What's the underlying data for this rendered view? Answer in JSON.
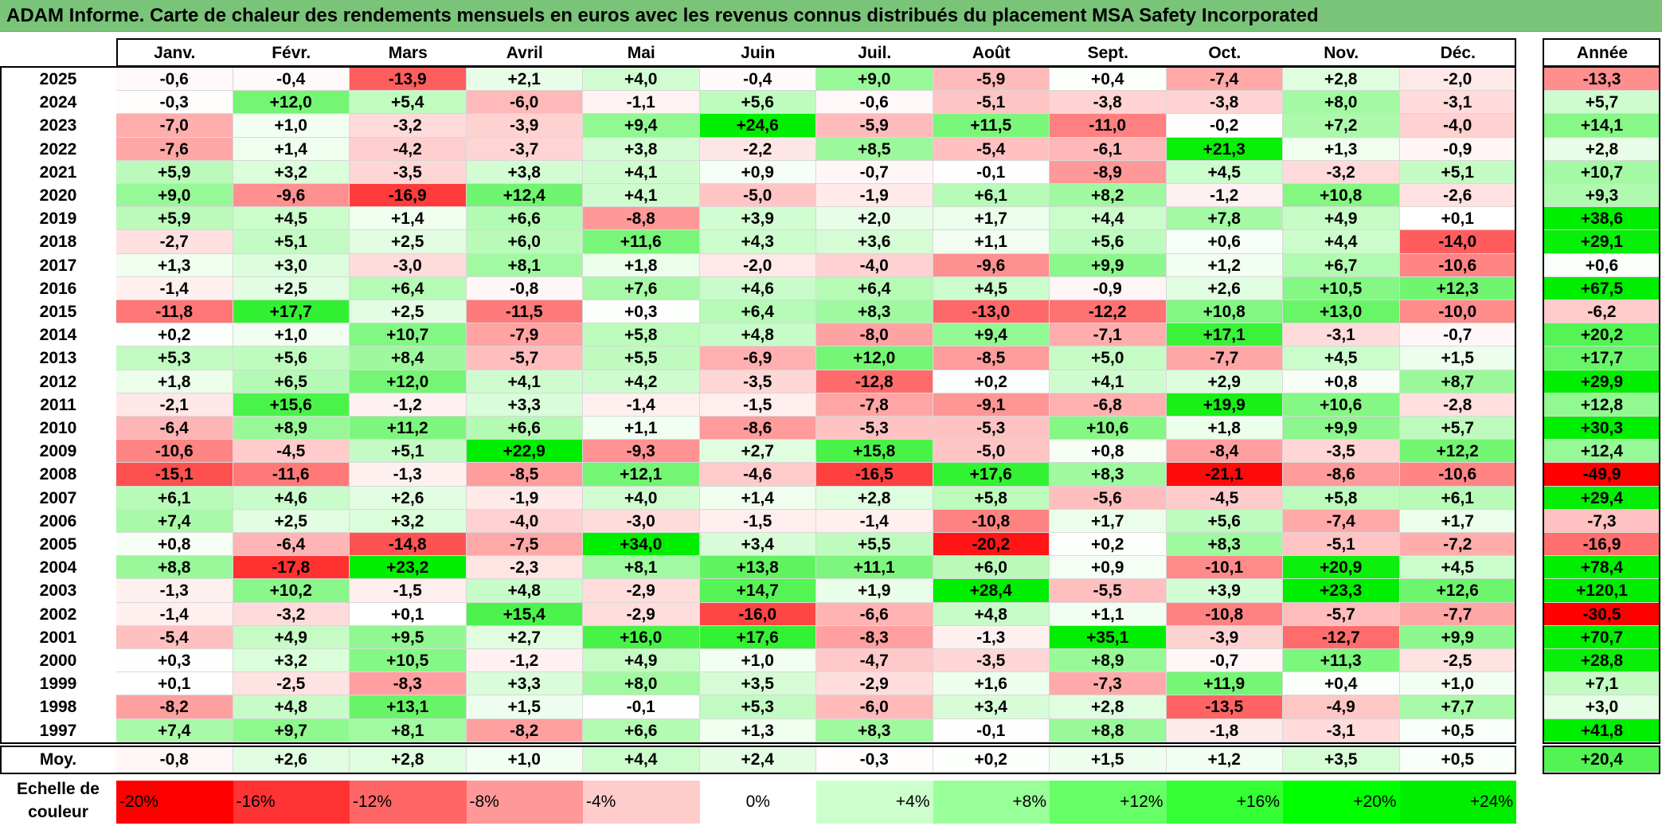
{
  "title": "ADAM Informe. Carte de chaleur des rendements mensuels en euros avec les revenus connus distribués du placement MSA Safety Incorporated",
  "chart_data": {
    "type": "heatmap",
    "title": "ADAM Informe. Carte de chaleur des rendements mensuels en euros avec les revenus connus distribués du placement MSA Safety Incorporated",
    "columns": [
      "Janv.",
      "Févr.",
      "Mars",
      "Avril",
      "Mai",
      "Juin",
      "Juil.",
      "Août",
      "Sept.",
      "Oct.",
      "Nov.",
      "Déc."
    ],
    "year_column_label": "Année",
    "avg_row_label": "Moy.",
    "rows": [
      {
        "year": "2025",
        "values": [
          "-0,6",
          "-0,4",
          "-13,9",
          "+2,1",
          "+4,0",
          "-0,4",
          "+9,0",
          "-5,9",
          "+0,4",
          "-7,4",
          "+2,8",
          "-2,0"
        ],
        "annual": "-13,3"
      },
      {
        "year": "2024",
        "values": [
          "-0,3",
          "+12,0",
          "+5,4",
          "-6,0",
          "-1,1",
          "+5,6",
          "-0,6",
          "-5,1",
          "-3,8",
          "-3,8",
          "+8,0",
          "-3,1"
        ],
        "annual": "+5,7"
      },
      {
        "year": "2023",
        "values": [
          "-7,0",
          "+1,0",
          "-3,2",
          "-3,9",
          "+9,4",
          "+24,6",
          "-5,9",
          "+11,5",
          "-11,0",
          "-0,2",
          "+7,2",
          "-4,0"
        ],
        "annual": "+14,1"
      },
      {
        "year": "2022",
        "values": [
          "-7,6",
          "+1,4",
          "-4,2",
          "-3,7",
          "+3,8",
          "-2,2",
          "+8,5",
          "-5,4",
          "-6,1",
          "+21,3",
          "+1,3",
          "-0,9"
        ],
        "annual": "+2,8"
      },
      {
        "year": "2021",
        "values": [
          "+5,9",
          "+3,2",
          "-3,5",
          "+3,8",
          "+4,1",
          "+0,9",
          "-0,7",
          "-0,1",
          "-8,9",
          "+4,5",
          "-3,2",
          "+5,1"
        ],
        "annual": "+10,7"
      },
      {
        "year": "2020",
        "values": [
          "+9,0",
          "-9,6",
          "-16,9",
          "+12,4",
          "+4,1",
          "-5,0",
          "-1,9",
          "+6,1",
          "+8,2",
          "-1,2",
          "+10,8",
          "-2,6"
        ],
        "annual": "+9,3"
      },
      {
        "year": "2019",
        "values": [
          "+5,9",
          "+4,5",
          "+1,4",
          "+6,6",
          "-8,8",
          "+3,9",
          "+2,0",
          "+1,7",
          "+4,4",
          "+7,8",
          "+4,9",
          "+0,1"
        ],
        "annual": "+38,6"
      },
      {
        "year": "2018",
        "values": [
          "-2,7",
          "+5,1",
          "+2,5",
          "+6,0",
          "+11,6",
          "+4,3",
          "+3,6",
          "+1,1",
          "+5,6",
          "+0,6",
          "+4,4",
          "-14,0"
        ],
        "annual": "+29,1"
      },
      {
        "year": "2017",
        "values": [
          "+1,3",
          "+3,0",
          "-3,0",
          "+8,1",
          "+1,8",
          "-2,0",
          "-4,0",
          "-9,6",
          "+9,9",
          "+1,2",
          "+6,7",
          "-10,6"
        ],
        "annual": "+0,6"
      },
      {
        "year": "2016",
        "values": [
          "-1,4",
          "+2,5",
          "+6,4",
          "-0,8",
          "+7,6",
          "+4,6",
          "+6,4",
          "+4,5",
          "-0,9",
          "+2,6",
          "+10,5",
          "+12,3"
        ],
        "annual": "+67,5"
      },
      {
        "year": "2015",
        "values": [
          "-11,8",
          "+17,7",
          "+2,5",
          "-11,5",
          "+0,3",
          "+6,4",
          "+8,3",
          "-13,0",
          "-12,2",
          "+10,8",
          "+13,0",
          "-10,0"
        ],
        "annual": "-6,2"
      },
      {
        "year": "2014",
        "values": [
          "+0,2",
          "+1,0",
          "+10,7",
          "-7,9",
          "+5,8",
          "+4,8",
          "-8,0",
          "+9,4",
          "-7,1",
          "+17,1",
          "-3,1",
          "-0,7"
        ],
        "annual": "+20,2"
      },
      {
        "year": "2013",
        "values": [
          "+5,3",
          "+5,6",
          "+8,4",
          "-5,7",
          "+5,5",
          "-6,9",
          "+12,0",
          "-8,5",
          "+5,0",
          "-7,7",
          "+4,5",
          "+1,5"
        ],
        "annual": "+17,7"
      },
      {
        "year": "2012",
        "values": [
          "+1,8",
          "+6,5",
          "+12,0",
          "+4,1",
          "+4,2",
          "-3,5",
          "-12,8",
          "+0,2",
          "+4,1",
          "+2,9",
          "+0,8",
          "+8,7"
        ],
        "annual": "+29,9"
      },
      {
        "year": "2011",
        "values": [
          "-2,1",
          "+15,6",
          "-1,2",
          "+3,3",
          "-1,4",
          "-1,5",
          "-7,8",
          "-9,1",
          "-6,8",
          "+19,9",
          "+10,6",
          "-2,8"
        ],
        "annual": "+12,8"
      },
      {
        "year": "2010",
        "values": [
          "-6,4",
          "+8,9",
          "+11,2",
          "+6,6",
          "+1,1",
          "-8,6",
          "-5,3",
          "-5,3",
          "+10,6",
          "+1,8",
          "+9,9",
          "+5,7"
        ],
        "annual": "+30,3"
      },
      {
        "year": "2009",
        "values": [
          "-10,6",
          "-4,5",
          "+5,1",
          "+22,9",
          "-9,3",
          "+2,7",
          "+15,8",
          "-5,0",
          "+0,8",
          "-8,4",
          "-3,5",
          "+12,2"
        ],
        "annual": "+12,4"
      },
      {
        "year": "2008",
        "values": [
          "-15,1",
          "-11,6",
          "-1,3",
          "-8,5",
          "+12,1",
          "-4,6",
          "-16,5",
          "+17,6",
          "+8,3",
          "-21,1",
          "-8,6",
          "-10,6"
        ],
        "annual": "-49,9"
      },
      {
        "year": "2007",
        "values": [
          "+6,1",
          "+4,6",
          "+2,6",
          "-1,9",
          "+4,0",
          "+1,4",
          "+2,8",
          "+5,8",
          "-5,6",
          "-4,5",
          "+5,8",
          "+6,1"
        ],
        "annual": "+29,4"
      },
      {
        "year": "2006",
        "values": [
          "+7,4",
          "+2,5",
          "+3,2",
          "-4,0",
          "-3,0",
          "-1,5",
          "-1,4",
          "-10,8",
          "+1,7",
          "+5,6",
          "-7,4",
          "+1,7"
        ],
        "annual": "-7,3"
      },
      {
        "year": "2005",
        "values": [
          "+0,8",
          "-6,4",
          "-14,8",
          "-7,5",
          "+34,0",
          "+3,4",
          "+5,5",
          "-20,2",
          "+0,2",
          "+8,3",
          "-5,1",
          "-7,2"
        ],
        "annual": "-16,9"
      },
      {
        "year": "2004",
        "values": [
          "+8,8",
          "-17,8",
          "+23,2",
          "-2,3",
          "+8,1",
          "+13,8",
          "+11,1",
          "+6,0",
          "+0,9",
          "-10,1",
          "+20,9",
          "+4,5"
        ],
        "annual": "+78,4"
      },
      {
        "year": "2003",
        "values": [
          "-1,3",
          "+10,2",
          "-1,5",
          "+4,8",
          "-2,9",
          "+14,7",
          "+1,9",
          "+28,4",
          "-5,5",
          "+3,9",
          "+23,3",
          "+12,6"
        ],
        "annual": "+120,1"
      },
      {
        "year": "2002",
        "values": [
          "-1,4",
          "-3,2",
          "+0,1",
          "+15,4",
          "-2,9",
          "-16,0",
          "-6,6",
          "+4,8",
          "+1,1",
          "-10,8",
          "-5,7",
          "-7,7"
        ],
        "annual": "-30,5"
      },
      {
        "year": "2001",
        "values": [
          "-5,4",
          "+4,9",
          "+9,5",
          "+2,7",
          "+16,0",
          "+17,6",
          "-8,3",
          "-1,3",
          "+35,1",
          "-3,9",
          "-12,7",
          "+9,9"
        ],
        "annual": "+70,7"
      },
      {
        "year": "2000",
        "values": [
          "+0,3",
          "+3,2",
          "+10,5",
          "-1,2",
          "+4,9",
          "+1,0",
          "-4,7",
          "-3,5",
          "+8,9",
          "-0,7",
          "+11,3",
          "-2,5"
        ],
        "annual": "+28,8"
      },
      {
        "year": "1999",
        "values": [
          "+0,1",
          "-2,5",
          "-8,3",
          "+3,3",
          "+8,0",
          "+3,5",
          "-2,9",
          "+1,6",
          "-7,3",
          "+11,9",
          "+0,4",
          "+1,0"
        ],
        "annual": "+7,1"
      },
      {
        "year": "1998",
        "values": [
          "-8,2",
          "+4,8",
          "+13,1",
          "+1,5",
          "-0,1",
          "+5,3",
          "-6,0",
          "+3,4",
          "+2,8",
          "-13,5",
          "-4,9",
          "+7,7"
        ],
        "annual": "+3,0"
      },
      {
        "year": "1997",
        "values": [
          "+7,4",
          "+9,7",
          "+8,1",
          "-8,2",
          "+6,6",
          "+1,3",
          "+8,3",
          "-0,1",
          "+8,8",
          "-1,8",
          "-3,1",
          "+0,5"
        ],
        "annual": "+41,8"
      }
    ],
    "averages": [
      "-0,8",
      "+2,6",
      "+2,8",
      "+1,0",
      "+4,4",
      "+2,4",
      "-0,3",
      "+0,2",
      "+1,5",
      "+1,2",
      "+3,5",
      "+0,5"
    ],
    "average_annual": "+20,4"
  },
  "legend": {
    "label_line1": "Echelle de",
    "label_line2": "couleur",
    "steps": [
      {
        "label": "-20%",
        "value": -20,
        "color": "#ff0000"
      },
      {
        "label": "-16%",
        "value": -16,
        "color": "#ff3333"
      },
      {
        "label": "-12%",
        "value": -12,
        "color": "#ff6666"
      },
      {
        "label": "-8%",
        "value": -8,
        "color": "#ff9999"
      },
      {
        "label": "-4%",
        "value": -4,
        "color": "#ffcccc"
      },
      {
        "label": "0%",
        "value": 0,
        "color": "#ffffff"
      },
      {
        "label": "+4%",
        "value": 4,
        "color": "#ccffcc"
      },
      {
        "label": "+8%",
        "value": 8,
        "color": "#99ff99"
      },
      {
        "label": "+12%",
        "value": 12,
        "color": "#66ff66"
      },
      {
        "label": "+16%",
        "value": 16,
        "color": "#33ff33"
      },
      {
        "label": "+20%",
        "value": 20,
        "color": "#00ff00"
      },
      {
        "label": "+24%",
        "value": 24,
        "color": "#00ee00"
      }
    ]
  }
}
